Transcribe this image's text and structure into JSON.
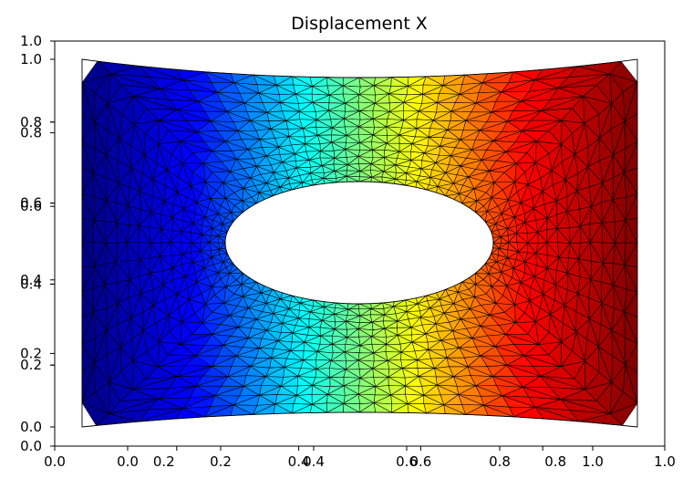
{
  "chart_data": {
    "type": "heatmap",
    "title": "Displacement X",
    "xlabel": "",
    "ylabel": "",
    "colormap": "jet",
    "colormap_stops": [
      "#00007f",
      "#0000ff",
      "#00ffff",
      "#ffff00",
      "#ff0000",
      "#7f0000"
    ],
    "mesh_color": "#000000",
    "grid": false,
    "legend": "none",
    "outer_axes": {
      "xlim": [
        0.0,
        1.0
      ],
      "ylim": [
        0.0,
        1.0
      ],
      "xticks": [
        "0.0",
        "0.2",
        "0.4",
        "0.6",
        "0.8",
        "1.0"
      ],
      "yticks": [
        "0.0",
        "0.2",
        "0.4",
        "0.6",
        "0.8",
        "1.0"
      ]
    },
    "inner_axes": {
      "xlim": [
        0.0,
        1.0
      ],
      "ylim": [
        0.0,
        1.0
      ],
      "xticks": [
        "0.0",
        "0.2",
        "0.4",
        "0.6",
        "0.8",
        "1.0"
      ],
      "yticks": [
        "0.0",
        "0.2",
        "0.4",
        "0.6",
        "0.8",
        "1.0"
      ]
    },
    "domain": {
      "plate_x": [
        0.0,
        1.0
      ],
      "plate_y": [
        0.0,
        1.0
      ],
      "hole_center": [
        0.5,
        0.5
      ],
      "hole_radii": [
        0.25,
        0.16
      ]
    },
    "field": "displacement_x"
  }
}
